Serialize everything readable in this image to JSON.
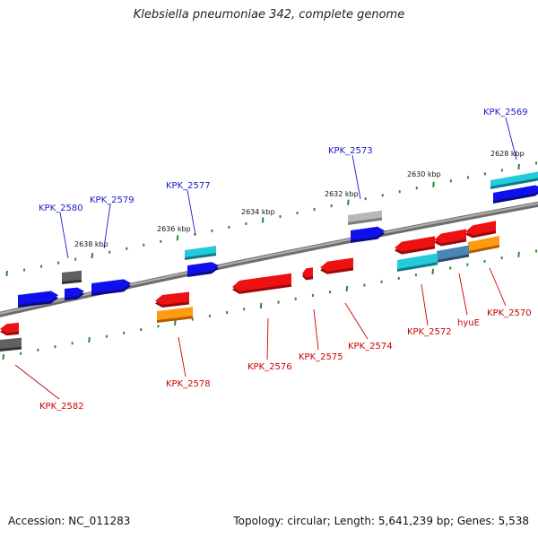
{
  "title": "Klebsiella pneumoniae 342, complete genome",
  "footer": {
    "accession": "Accession: NC_011283",
    "summary": "Topology: circular; Length: 5,641,239 bp; Genes: 5,538"
  },
  "colors": {
    "label_forward": "#1a1acc",
    "label_reverse": "#cc0000",
    "backbone": "#8c8c8c",
    "ticks": "#2a8a2a"
  },
  "scale_labels": [
    "2628 kbp",
    "2630 kbp",
    "2632 kbp",
    "2634 kbp",
    "2636 kbp",
    "2638 kbp"
  ],
  "gene_labels_forward": [
    "KPK_2569",
    "KPK_2573",
    "KPK_2577",
    "KPK_2579",
    "KPK_2580"
  ],
  "gene_labels_reverse": [
    "KPK_2570",
    "hyuE",
    "KPK_2572",
    "KPK_2574",
    "KPK_2575",
    "KPK_2576",
    "KPK_2578",
    "KPK_2582"
  ]
}
